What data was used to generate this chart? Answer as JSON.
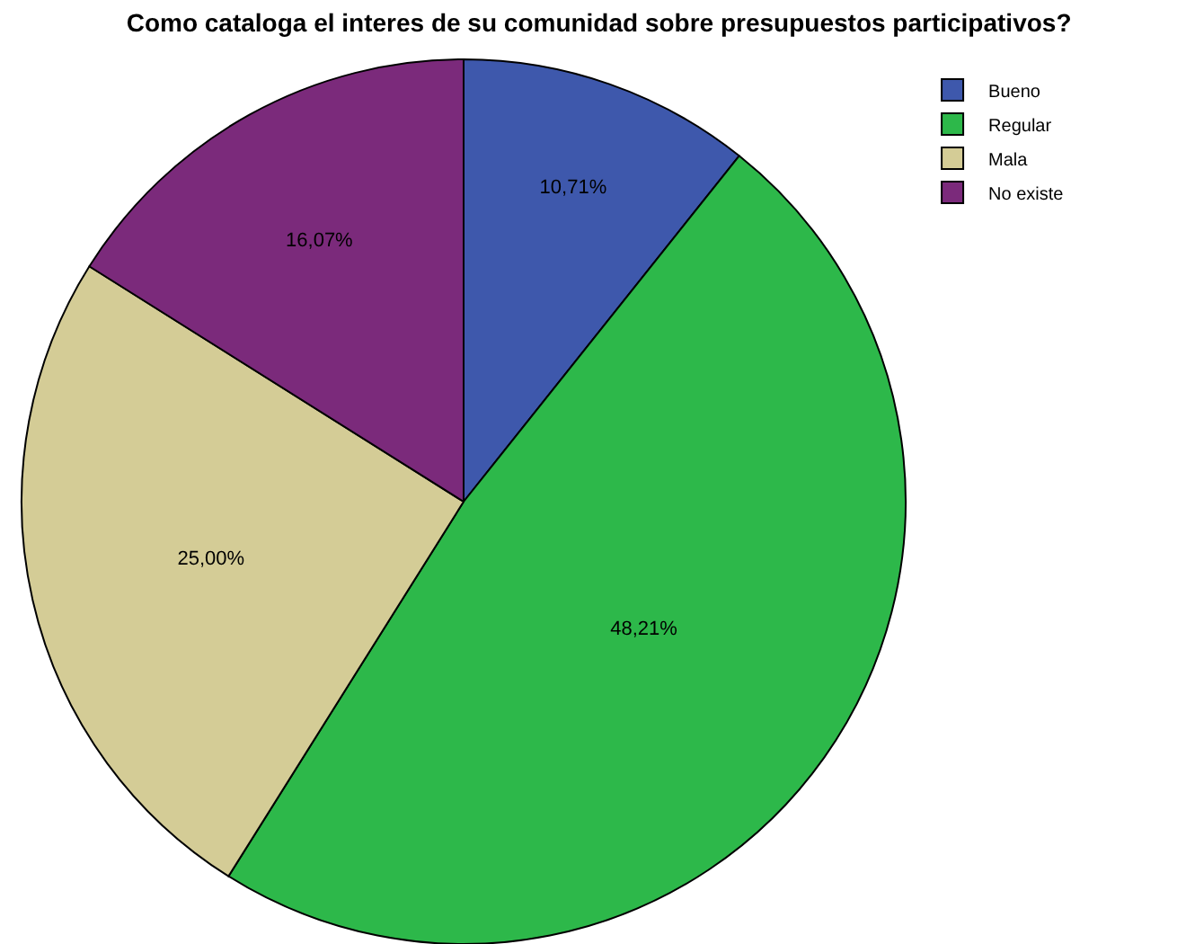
{
  "chart_data": {
    "type": "pie",
    "title": "Como cataloga el interes de su comunidad sobre presupuestos participativos?",
    "categories": [
      "Bueno",
      "Regular",
      "Mala",
      "No existe"
    ],
    "values": [
      10.71,
      48.21,
      25.0,
      16.07
    ],
    "value_labels": [
      "10,71%",
      "48,21%",
      "25,00%",
      "16,07%"
    ],
    "colors": [
      "#3e58ac",
      "#2db84a",
      "#d4cc96",
      "#7b2a7b"
    ],
    "legend": "top right"
  }
}
